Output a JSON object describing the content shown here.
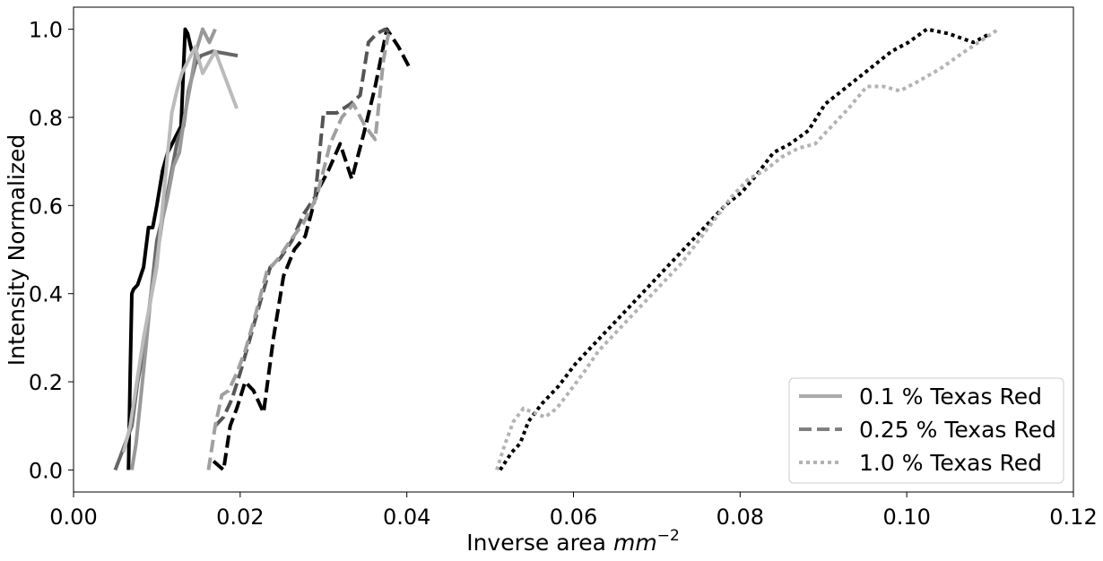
{
  "chart_data": {
    "type": "line",
    "title": "",
    "xlabel": "Inverse area",
    "xlabel_math": "mm",
    "xlabel_exp": "−2",
    "ylabel": "Intensity Normalized",
    "xlim": [
      0.0,
      0.12
    ],
    "ylim": [
      -0.05,
      1.05
    ],
    "xticks": [
      0.0,
      0.02,
      0.04,
      0.06,
      0.08,
      0.1,
      0.12
    ],
    "xtick_labels": [
      "0.00",
      "0.02",
      "0.04",
      "0.06",
      "0.08",
      "0.10",
      "0.12"
    ],
    "yticks": [
      0.0,
      0.2,
      0.4,
      0.6,
      0.8,
      1.0
    ],
    "ytick_labels": [
      "0.0",
      "0.2",
      "0.4",
      "0.6",
      "0.8",
      "1.0"
    ],
    "grid": false,
    "legend_position": "bottom-right",
    "legend": [
      {
        "label": "0.1 % Texas Red",
        "style": "solid",
        "color": "#aaaaaa"
      },
      {
        "label": "0.25 % Texas Red",
        "style": "dashed",
        "color": "#808080"
      },
      {
        "label": "1.0 % Texas Red",
        "style": "dotted",
        "color": "#b3b3b3"
      }
    ],
    "series": [
      {
        "group": "0.1 % Texas Red",
        "style": "solid",
        "color": "#000000",
        "x": [
          0.0066,
          0.0068,
          0.007,
          0.0072,
          0.0077,
          0.0084,
          0.009,
          0.0095,
          0.01,
          0.0107,
          0.0113,
          0.0121,
          0.0129,
          0.0134,
          0.0137,
          0.0142
        ],
        "y": [
          0.0,
          0.22,
          0.4,
          0.41,
          0.42,
          0.46,
          0.55,
          0.55,
          0.6,
          0.68,
          0.72,
          0.75,
          0.78,
          1.0,
          0.99,
          0.95
        ]
      },
      {
        "group": "0.1 % Texas Red",
        "style": "solid",
        "color": "#666666",
        "x": [
          0.005,
          0.006,
          0.007,
          0.0077,
          0.0085,
          0.0093,
          0.01,
          0.011,
          0.0118,
          0.0125,
          0.0132,
          0.0138,
          0.0146,
          0.0153,
          0.0167,
          0.0197
        ],
        "y": [
          0.0,
          0.05,
          0.1,
          0.2,
          0.28,
          0.4,
          0.52,
          0.6,
          0.68,
          0.75,
          0.78,
          0.86,
          0.92,
          0.94,
          0.95,
          0.94
        ]
      },
      {
        "group": "0.1 % Texas Red",
        "style": "solid",
        "color": "#999999",
        "x": [
          0.007,
          0.0075,
          0.008,
          0.0087,
          0.0093,
          0.01,
          0.0107,
          0.0113,
          0.012,
          0.0127,
          0.0133,
          0.014,
          0.0147,
          0.0155,
          0.0163,
          0.017
        ],
        "y": [
          0.0,
          0.06,
          0.15,
          0.28,
          0.4,
          0.48,
          0.57,
          0.62,
          0.69,
          0.72,
          0.8,
          0.87,
          0.95,
          1.0,
          0.97,
          1.0
        ]
      },
      {
        "group": "0.1 % Texas Red",
        "style": "solid",
        "color": "#bbbbbb",
        "x": [
          0.006,
          0.0068,
          0.0076,
          0.0084,
          0.0092,
          0.01,
          0.0106,
          0.0112,
          0.0118,
          0.0124,
          0.013,
          0.0138,
          0.0146,
          0.0155,
          0.017,
          0.0196
        ],
        "y": [
          0.04,
          0.1,
          0.2,
          0.3,
          0.38,
          0.46,
          0.58,
          0.7,
          0.81,
          0.86,
          0.9,
          0.93,
          0.96,
          0.9,
          0.95,
          0.82
        ]
      },
      {
        "group": "0.25 % Texas Red",
        "style": "dashed",
        "color": "#000000",
        "x": [
          0.0168,
          0.018,
          0.0188,
          0.0196,
          0.0206,
          0.0216,
          0.0228,
          0.024,
          0.0252,
          0.0265,
          0.0278,
          0.0292,
          0.0306,
          0.032,
          0.0334,
          0.0348,
          0.0362,
          0.0376,
          0.039,
          0.0404
        ],
        "y": [
          0.02,
          0.0,
          0.1,
          0.14,
          0.2,
          0.18,
          0.13,
          0.3,
          0.44,
          0.5,
          0.53,
          0.63,
          0.68,
          0.74,
          0.66,
          0.76,
          0.87,
          1.0,
          0.96,
          0.91
        ]
      },
      {
        "group": "0.25 % Texas Red",
        "style": "dashed",
        "color": "#555555",
        "x": [
          0.017,
          0.018,
          0.019,
          0.02,
          0.0212,
          0.0224,
          0.0236,
          0.0248,
          0.0262,
          0.0276,
          0.029,
          0.03,
          0.0316,
          0.0332,
          0.0344,
          0.0354,
          0.0364,
          0.0374,
          0.038
        ],
        "y": [
          0.1,
          0.12,
          0.16,
          0.22,
          0.3,
          0.38,
          0.46,
          0.48,
          0.52,
          0.58,
          0.62,
          0.81,
          0.81,
          0.83,
          0.85,
          0.97,
          0.99,
          1.0,
          0.99
        ]
      },
      {
        "group": "0.25 % Texas Red",
        "style": "dashed",
        "color": "#a0a0a0",
        "x": [
          0.0162,
          0.017,
          0.0178,
          0.0186,
          0.0196,
          0.0206,
          0.0218,
          0.0232,
          0.0246,
          0.026,
          0.0276,
          0.0292,
          0.0308,
          0.0322,
          0.0336,
          0.035,
          0.0362,
          0.0372,
          0.0378
        ],
        "y": [
          0.0,
          0.1,
          0.17,
          0.18,
          0.22,
          0.27,
          0.35,
          0.45,
          0.48,
          0.52,
          0.56,
          0.62,
          0.74,
          0.8,
          0.83,
          0.78,
          0.75,
          0.93,
          0.99
        ]
      },
      {
        "group": "1.0 % Texas Red",
        "style": "dotted",
        "color": "#000000",
        "x": [
          0.0512,
          0.0526,
          0.0536,
          0.0546,
          0.0562,
          0.0582,
          0.0602,
          0.0622,
          0.0642,
          0.0662,
          0.0682,
          0.0702,
          0.0722,
          0.0742,
          0.0762,
          0.0782,
          0.0802,
          0.082,
          0.084,
          0.086,
          0.0882,
          0.0902,
          0.0922,
          0.0942,
          0.0962,
          0.0982,
          0.1002,
          0.1024,
          0.105,
          0.108,
          0.11
        ],
        "y": [
          0.0,
          0.04,
          0.06,
          0.11,
          0.15,
          0.19,
          0.24,
          0.28,
          0.32,
          0.36,
          0.4,
          0.44,
          0.48,
          0.52,
          0.56,
          0.6,
          0.63,
          0.67,
          0.72,
          0.74,
          0.77,
          0.83,
          0.86,
          0.89,
          0.92,
          0.95,
          0.97,
          1.0,
          0.99,
          0.97,
          0.99
        ]
      },
      {
        "group": "1.0 % Texas Red",
        "style": "dotted",
        "color": "#b3b3b3",
        "x": [
          0.0508,
          0.0518,
          0.0528,
          0.054,
          0.0552,
          0.0566,
          0.058,
          0.0596,
          0.0612,
          0.063,
          0.065,
          0.067,
          0.069,
          0.071,
          0.073,
          0.075,
          0.077,
          0.079,
          0.081,
          0.083,
          0.085,
          0.087,
          0.089,
          0.091,
          0.093,
          0.0952,
          0.0972,
          0.0992,
          0.1012,
          0.104,
          0.107,
          0.111
        ],
        "y": [
          0.0,
          0.06,
          0.11,
          0.14,
          0.13,
          0.12,
          0.14,
          0.18,
          0.22,
          0.27,
          0.31,
          0.35,
          0.39,
          0.43,
          0.47,
          0.52,
          0.57,
          0.62,
          0.66,
          0.68,
          0.71,
          0.73,
          0.74,
          0.78,
          0.82,
          0.87,
          0.87,
          0.86,
          0.88,
          0.91,
          0.95,
          1.0
        ]
      }
    ]
  }
}
